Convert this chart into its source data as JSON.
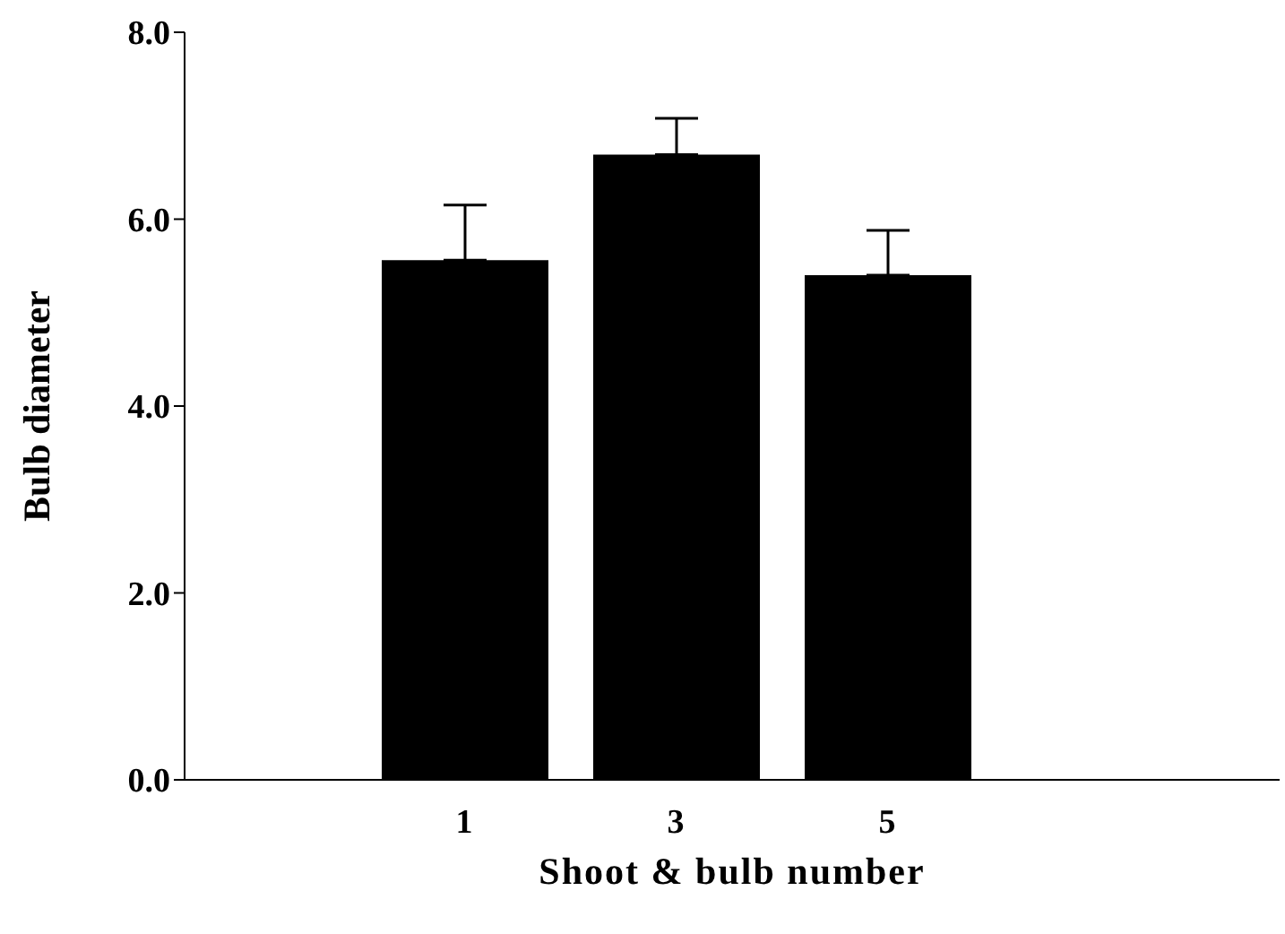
{
  "chart_data": {
    "type": "bar",
    "xlabel": "Shoot  & bulb number",
    "ylabel": "Bulb diameter",
    "categories": [
      "1",
      "3",
      "5"
    ],
    "values": [
      5.56,
      6.69,
      5.4
    ],
    "errors": [
      [
        5.56,
        6.15
      ],
      [
        6.69,
        7.08
      ],
      [
        5.4,
        5.88
      ]
    ],
    "color": "#000000",
    "ylim": [
      0,
      8
    ],
    "yticks": [
      {
        "value": 0,
        "label": "0.0"
      },
      {
        "value": 2,
        "label": "2.0"
      },
      {
        "value": 4,
        "label": "4.0"
      },
      {
        "value": 6,
        "label": "6.0"
      },
      {
        "value": 8,
        "label": "8.0"
      }
    ],
    "grid": false
  }
}
